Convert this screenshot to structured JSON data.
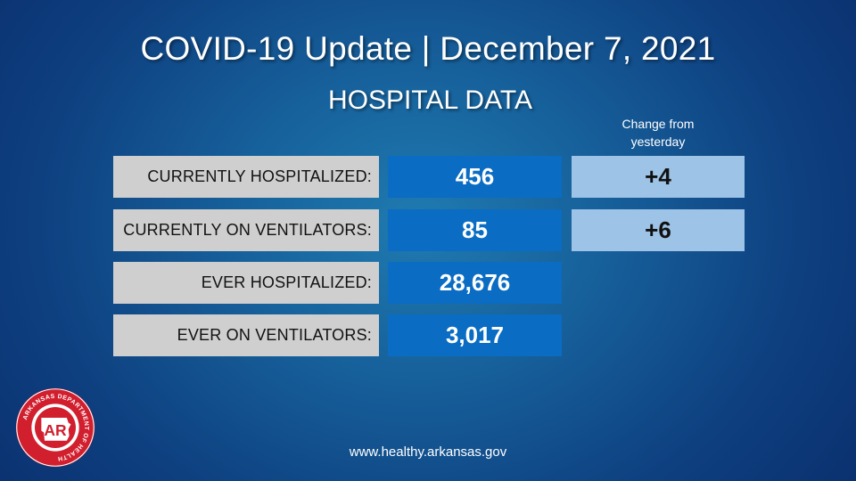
{
  "title": "COVID-19 Update | December 7, 2021",
  "subtitle": "HOSPITAL DATA",
  "change_header": [
    "Change from",
    "yesterday"
  ],
  "rows": [
    {
      "label": "CURRENTLY HOSPITALIZED:",
      "value": "456",
      "change": "+4"
    },
    {
      "label": "CURRENTLY ON VENTILATORS:",
      "value": "85",
      "change": "+6"
    },
    {
      "label": "EVER HOSPITALIZED:",
      "value": "28,676"
    },
    {
      "label": "EVER ON VENTILATORS:",
      "value": "3,017"
    }
  ],
  "logo": {
    "name": "arkansas-department-of-health-seal",
    "text": "ARKANSAS DEPARTMENT OF HEALTH",
    "mark": "AR"
  },
  "footer": "www.healthy.arkansas.gov",
  "colors": {
    "label_bg": "#cfcfcf",
    "value_bg": "#0a6cc2",
    "change_bg": "#9dc3e6",
    "seal_red": "#d11f2e"
  }
}
